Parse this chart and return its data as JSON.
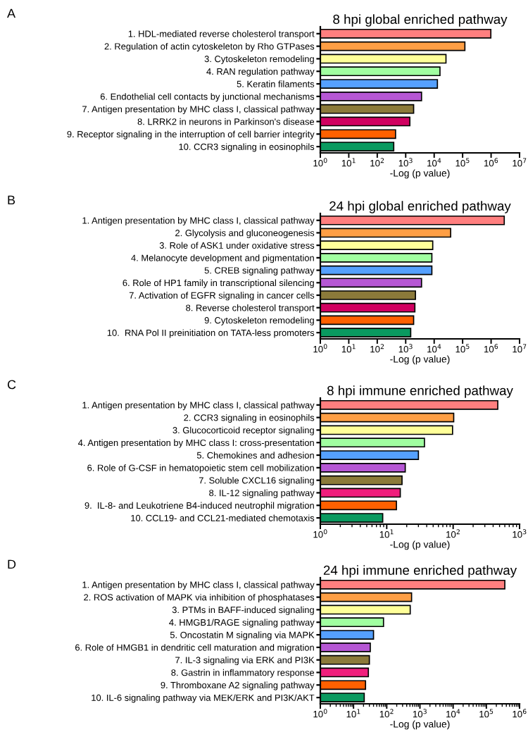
{
  "chart_data": [
    {
      "type": "bar",
      "orientation": "horizontal",
      "log": "x",
      "title": "8 hpi global enriched pathway",
      "xlabel": "-Log (p value)",
      "annotations": [
        "A"
      ],
      "categories": [
        "1. HDL-mediated reverse cholesterol transport",
        "2. Regulation of actin cytoskeleton by Rho GTPases",
        "3. Cytoskeleton remodeling",
        "4. RAN regulation pathway",
        "5. Keratin filaments",
        "6. Endothelial cell contacts by junctional mechanisms",
        "7. Antigen presentation by MHC class I, classical pathway",
        "8. LRRK2 in neurons in Parkinson's disease",
        "9. Receptor signaling in the interruption of cell barrier integrity",
        "10. CCR3 signaling in eosinophils"
      ],
      "values": [
        980000,
        120000,
        26000,
        16000,
        13000,
        3600,
        1900,
        1400,
        440,
        380
      ],
      "colors": [
        "#ff7f7f",
        "#ff9f45",
        "#ffff99",
        "#a0ffa0",
        "#55a0ff",
        "#b657d4",
        "#8b7a3a",
        "#d00060",
        "#ff6000",
        "#0a9a60"
      ],
      "xlim": [
        1,
        10000000
      ],
      "xticks": [
        {
          "value": 1,
          "label": "10$^{0}$"
        },
        {
          "value": 10,
          "label": "10$^{1}$"
        },
        {
          "value": 100,
          "label": "10$^{2}$"
        },
        {
          "value": 1000,
          "label": "10$^{3}$"
        },
        {
          "value": 10000,
          "label": "10$^{4}$"
        },
        {
          "value": 100000,
          "label": "10$^{5}$"
        },
        {
          "value": 1000000,
          "label": "10$^{6}$"
        },
        {
          "value": 10000000,
          "label": "10$^{7}$"
        }
      ]
    },
    {
      "type": "bar",
      "orientation": "horizontal",
      "log": "x",
      "title": "24 hpi global enriched pathway",
      "xlabel": "-Log (p value)",
      "annotations": [
        "B"
      ],
      "categories": [
        "1. Antigen presentation by MHC class I, classical pathway",
        "2. Glycolysis and gluconeogenesis",
        "3. Role of ASK1 under oxidative stress",
        "4. Melanocyte development and pigmentation",
        "5. CREB signaling pathway",
        "6. Role of HP1 family in transcriptional silencing",
        "7. Activation of EGFR signaling in cancer cells",
        "8. Reverse cholesterol transport",
        "9. Cytoskeleton remodeling",
        "10.  RNA Pol II preinitiation on TATA-less promoters"
      ],
      "values": [
        2900000,
        38000,
        8900,
        8300,
        8300,
        3600,
        2200,
        2100,
        1900,
        1500
      ],
      "colors": [
        "#ff7f7f",
        "#ff9f45",
        "#ffff99",
        "#a0ffa0",
        "#55a0ff",
        "#b657d4",
        "#8b7a3a",
        "#d00060",
        "#ff6000",
        "#0a9a60"
      ],
      "xlim": [
        1,
        10000000
      ],
      "xticks": [
        {
          "value": 1,
          "label": "10$^{0}$"
        },
        {
          "value": 10,
          "label": "10$^{1}$"
        },
        {
          "value": 100,
          "label": "10$^{2}$"
        },
        {
          "value": 1000,
          "label": "10$^{3}$"
        },
        {
          "value": 10000,
          "label": "10$^{4}$"
        },
        {
          "value": 100000,
          "label": "10$^{5}$"
        },
        {
          "value": 1000000,
          "label": "10$^{6}$"
        },
        {
          "value": 10000000,
          "label": "10$^{7}$"
        }
      ]
    },
    {
      "type": "bar",
      "orientation": "horizontal",
      "log": "x",
      "title": "8 hpi immune enriched pathway",
      "xlabel": "-Log (p value)",
      "annotations": [
        "C"
      ],
      "categories": [
        "1. Antigen presentation by MHC class I, classical pathway",
        "2. CCR3 signaling in eosinophils",
        "3. Glucocorticoid receptor signaling",
        "4. Antigen presentation by MHC class I: cross-presentation",
        "5. Chemokines and adhesion",
        "6. Role of G-CSF in hematopoietic stem cell mobilization",
        "7. Soluble CXCL16 signaling",
        "8. IL-12 signaling pathway",
        "9.  IL-8- and Leukotriene B4-induced neutrophil migration",
        "10. CCL19- and CCL21-mediated chemotaxis"
      ],
      "values": [
        470,
        102,
        98,
        37,
        30,
        19,
        17,
        16,
        14,
        8.7
      ],
      "colors": [
        "#ff7f7f",
        "#ff9f45",
        "#ffff99",
        "#a0ffa0",
        "#55a0ff",
        "#b657d4",
        "#8b7a3a",
        "#f01e7c",
        "#ff6000",
        "#0a9a60"
      ],
      "xlim": [
        1,
        1000
      ],
      "xticks": [
        {
          "value": 1,
          "label": "10$^{0}$"
        },
        {
          "value": 10,
          "label": "10$^{1}$"
        },
        {
          "value": 100,
          "label": "10$^{2}$"
        },
        {
          "value": 1000,
          "label": "10$^{3}$"
        }
      ]
    },
    {
      "type": "bar",
      "orientation": "horizontal",
      "log": "x",
      "title": "24 hpi immune enriched pathway",
      "xlabel": "-Log (p value)",
      "annotations": [
        "D"
      ],
      "categories": [
        "1. Antigen presentation by MHC class I, classical pathway",
        "2. ROS activation of MAPK via inhibition of phosphatases",
        "3. PTMs in BAFF-induced signaling",
        "4. HMGB1/RAGE signaling pathway",
        "5. Oncostatin M signaling via MAPK",
        "6. Role of HMGB1 in dendritic cell maturation and migration",
        "7. IL-3 signaling via ERK and PI3K",
        "8. Gastrin in inflammatory response",
        "9. Thromboxane A2 signaling pathway",
        "10. IL-6 signaling pathway via MEK/ERK and PI3K/AKT"
      ],
      "values": [
        360000,
        560,
        510,
        80,
        40,
        32,
        30,
        28,
        23,
        21
      ],
      "colors": [
        "#ff7f7f",
        "#ff9f45",
        "#ffff99",
        "#a0ffa0",
        "#55a0ff",
        "#b657d4",
        "#8b7a3a",
        "#f01e7c",
        "#ff6000",
        "#0a9a60"
      ],
      "xlim": [
        1,
        1000000
      ],
      "xticks": [
        {
          "value": 1,
          "label": "10$^{0}$"
        },
        {
          "value": 10,
          "label": "10$^{1}$"
        },
        {
          "value": 100,
          "label": "10$^{2}$"
        },
        {
          "value": 1000,
          "label": "10$^{3}$"
        },
        {
          "value": 10000,
          "label": "10$^{4}$"
        },
        {
          "value": 100000,
          "label": "10$^{5}$"
        },
        {
          "value": 1000000,
          "label": "10$^{6}$"
        }
      ]
    }
  ]
}
